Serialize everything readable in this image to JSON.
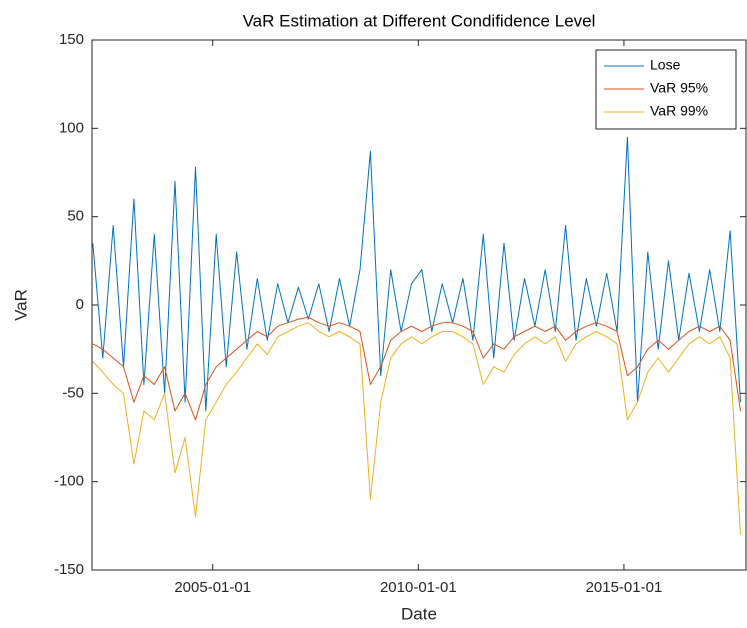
{
  "chart_data": {
    "type": "line",
    "title": "VaR Estimation at Different Condifidence Level",
    "x_label": "Date",
    "y_label": "VaR",
    "x": [
      "2002-02-01",
      "2002-05-01",
      "2002-08-01",
      "2002-11-01",
      "2003-02-01",
      "2003-05-01",
      "2003-08-01",
      "2003-11-01",
      "2004-02-01",
      "2004-05-01",
      "2004-08-01",
      "2004-11-01",
      "2005-02-01",
      "2005-05-01",
      "2005-08-01",
      "2005-11-01",
      "2006-02-01",
      "2006-05-01",
      "2006-08-01",
      "2006-11-01",
      "2007-02-01",
      "2007-05-01",
      "2007-08-01",
      "2007-11-01",
      "2008-02-01",
      "2008-05-01",
      "2008-08-01",
      "2008-11-01",
      "2009-02-01",
      "2009-05-01",
      "2009-08-01",
      "2009-11-01",
      "2010-02-01",
      "2010-05-01",
      "2010-08-01",
      "2010-11-01",
      "2011-02-01",
      "2011-05-01",
      "2011-08-01",
      "2011-11-01",
      "2012-02-01",
      "2012-05-01",
      "2012-08-01",
      "2012-11-01",
      "2013-02-01",
      "2013-05-01",
      "2013-08-01",
      "2013-11-01",
      "2014-02-01",
      "2014-05-01",
      "2014-08-01",
      "2014-11-01",
      "2015-02-01",
      "2015-05-01",
      "2015-08-01",
      "2015-11-01",
      "2016-02-01",
      "2016-05-01",
      "2016-08-01",
      "2016-11-01",
      "2017-02-01",
      "2017-05-01",
      "2017-08-01",
      "2017-11-01"
    ],
    "series": [
      {
        "name": "Lose",
        "color": "#0072BD",
        "values": [
          35,
          -30,
          45,
          -35,
          60,
          -45,
          40,
          -50,
          70,
          -55,
          78,
          -60,
          40,
          -35,
          30,
          -25,
          15,
          -20,
          12,
          -10,
          10,
          -8,
          12,
          -15,
          15,
          -12,
          20,
          87,
          -40,
          20,
          -15,
          12,
          20,
          -15,
          12,
          -10,
          15,
          -20,
          40,
          -30,
          35,
          -20,
          15,
          -12,
          20,
          -15,
          45,
          -20,
          15,
          -12,
          18,
          -15,
          95,
          -55,
          30,
          -25,
          25,
          -20,
          18,
          -15,
          20,
          -15,
          42,
          -55
        ]
      },
      {
        "name": "VaR 95%",
        "color": "#D95319",
        "values": [
          -22,
          -25,
          -30,
          -35,
          -55,
          -40,
          -45,
          -35,
          -60,
          -50,
          -65,
          -45,
          -35,
          -30,
          -25,
          -20,
          -15,
          -18,
          -12,
          -10,
          -8,
          -7,
          -10,
          -12,
          -10,
          -12,
          -15,
          -45,
          -35,
          -20,
          -15,
          -12,
          -15,
          -12,
          -10,
          -10,
          -12,
          -15,
          -30,
          -22,
          -25,
          -18,
          -15,
          -12,
          -15,
          -12,
          -20,
          -15,
          -12,
          -10,
          -12,
          -15,
          -40,
          -35,
          -25,
          -20,
          -25,
          -20,
          -15,
          -12,
          -15,
          -12,
          -20,
          -60
        ]
      },
      {
        "name": "VaR 99%",
        "color": "#EDB120",
        "values": [
          -32,
          -38,
          -45,
          -50,
          -90,
          -60,
          -65,
          -50,
          -95,
          -75,
          -120,
          -65,
          -55,
          -45,
          -38,
          -30,
          -22,
          -28,
          -18,
          -15,
          -12,
          -10,
          -15,
          -18,
          -15,
          -18,
          -22,
          -110,
          -55,
          -30,
          -22,
          -18,
          -22,
          -18,
          -15,
          -15,
          -18,
          -22,
          -45,
          -35,
          -38,
          -28,
          -22,
          -18,
          -22,
          -18,
          -32,
          -22,
          -18,
          -15,
          -18,
          -22,
          -65,
          -55,
          -38,
          -30,
          -38,
          -30,
          -22,
          -18,
          -22,
          -18,
          -30,
          -130
        ]
      }
    ],
    "xlim": [
      "2002-01-25",
      "2017-12-20"
    ],
    "xticks": [
      "2005-01-01",
      "2010-01-01",
      "2015-01-01"
    ],
    "ylim": [
      -150,
      150
    ],
    "yticks": [
      -150,
      -100,
      -50,
      0,
      50,
      100,
      150
    ],
    "grid": false,
    "legend": "northeast"
  }
}
